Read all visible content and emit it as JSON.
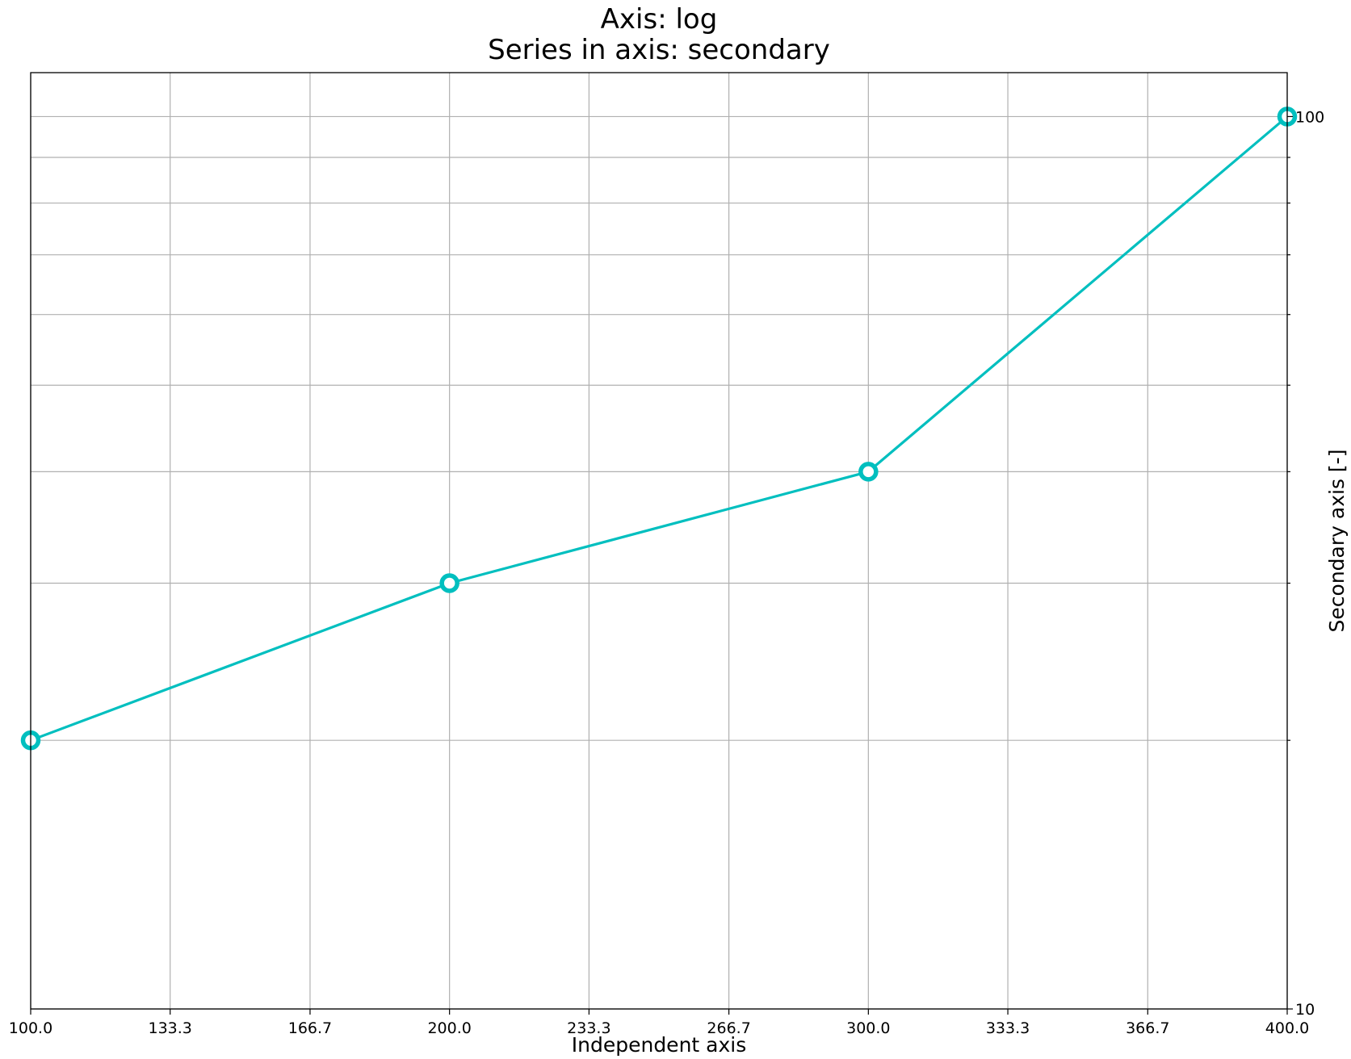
{
  "chart_data": {
    "type": "line",
    "title": "Axis: log",
    "subtitle": "Series in axis: secondary",
    "xlabel": "Independent axis",
    "ylabel": "Secondary axis [-]",
    "xlim": [
      100,
      400
    ],
    "ylim": [
      10,
      112
    ],
    "yscale": "log",
    "y_axis_side": "right",
    "grid": true,
    "x_ticks": [
      100.0,
      133.3,
      166.7,
      200.0,
      233.3,
      266.7,
      300.0,
      333.3,
      366.7,
      400.0
    ],
    "x_tick_labels": [
      "100.0",
      "133.3",
      "166.7",
      "200.0",
      "233.3",
      "266.7",
      "300.0",
      "333.3",
      "366.7",
      "400.0"
    ],
    "y_major_ticks": [
      10,
      100
    ],
    "y_major_tick_labels": [
      "10",
      "100"
    ],
    "y_minor_ticks": [
      20,
      30,
      40,
      50,
      60,
      70,
      80,
      90
    ],
    "colors": {
      "series": "#00bfbf"
    },
    "series": [
      {
        "x": [
          100,
          200,
          300,
          400
        ],
        "y": [
          20,
          30,
          40,
          100
        ]
      }
    ]
  }
}
